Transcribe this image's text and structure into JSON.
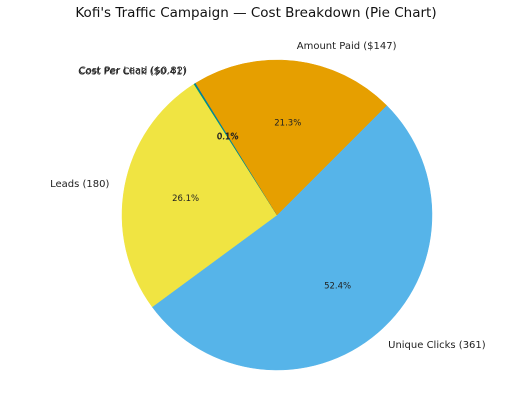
{
  "chart_data": {
    "type": "pie",
    "title": "Kofi's Traffic Campaign — Cost Breakdown (Pie Chart)",
    "slices": [
      {
        "label": "Unique Clicks (361)",
        "value": 52.4,
        "pct_label": "52.4%",
        "color": "#56b4e9"
      },
      {
        "label": "Leads (180)",
        "value": 26.1,
        "pct_label": "26.1%",
        "color": "#f0e442"
      },
      {
        "label": "Cost Per Click ($0.41)",
        "value": 0.1,
        "pct_label": "0.1%",
        "color": "#009e73"
      },
      {
        "label": "Cost Per Lead ($0.82)",
        "value": 0.1,
        "pct_label": "0.1%",
        "color": "#0072b2"
      },
      {
        "label": "Amount Paid ($147)",
        "value": 21.3,
        "pct_label": "21.3%",
        "color": "#e69f00"
      }
    ]
  }
}
